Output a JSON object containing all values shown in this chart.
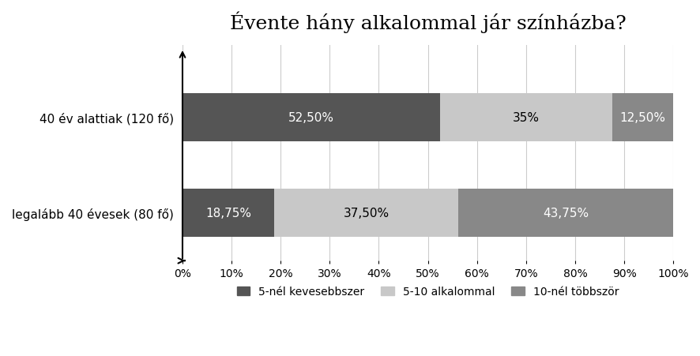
{
  "title": "Évente hány alkalommal jár színházba?",
  "categories": [
    "40 év alattiak (120 fő)",
    "legalább 40 évesek (80 fő)"
  ],
  "series": [
    {
      "label": "5-nél kevesebbszer",
      "color": "#555555",
      "values": [
        52.5,
        18.75
      ]
    },
    {
      "label": "5-10 alkalommal",
      "color": "#c8c8c8",
      "values": [
        35.0,
        37.5
      ]
    },
    {
      "label": "10-nél többször",
      "color": "#888888",
      "values": [
        12.5,
        43.75
      ]
    }
  ],
  "bar_labels": [
    [
      "52,50%",
      "35%",
      "12,50%"
    ],
    [
      "18,75%",
      "37,50%",
      "43,75%"
    ]
  ],
  "xlim": [
    0,
    100
  ],
  "xticks": [
    0,
    10,
    20,
    30,
    40,
    50,
    60,
    70,
    80,
    90,
    100
  ],
  "xtick_labels": [
    "0%",
    "10%",
    "20%",
    "30%",
    "40%",
    "50%",
    "60%",
    "70%",
    "80%",
    "90%",
    "100%"
  ],
  "background_color": "#ffffff",
  "title_fontsize": 18,
  "label_fontsize": 11,
  "tick_fontsize": 10,
  "legend_fontsize": 10,
  "bar_height": 0.5,
  "text_colors": [
    "white",
    "black",
    "white"
  ]
}
